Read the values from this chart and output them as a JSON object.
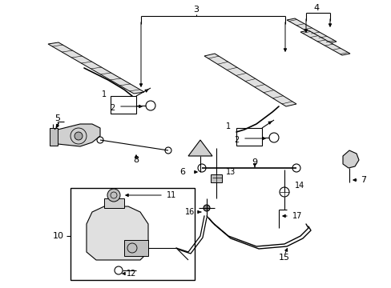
{
  "background_color": "#ffffff",
  "line_color": "#000000",
  "figsize": [
    4.89,
    3.6
  ],
  "dpi": 100,
  "xlim": [
    0,
    489
  ],
  "ylim": [
    0,
    360
  ]
}
